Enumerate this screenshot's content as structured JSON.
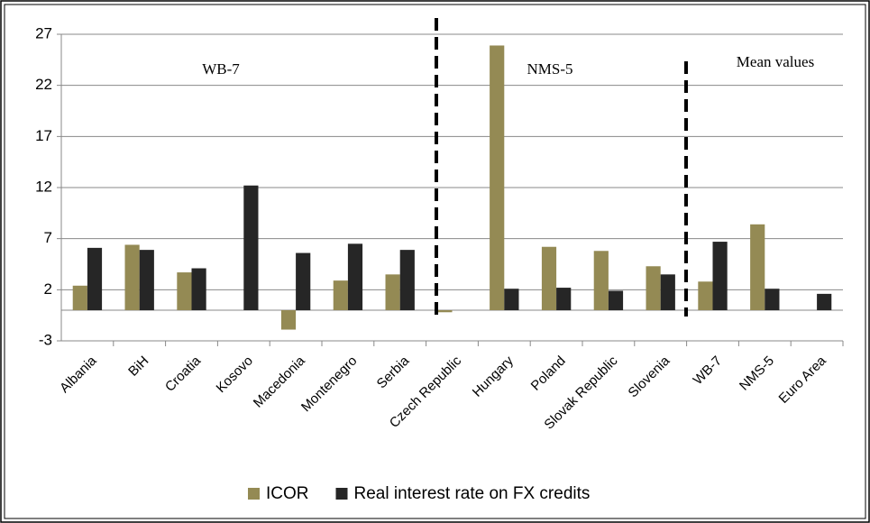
{
  "chart_data": {
    "type": "bar",
    "categories": [
      "Albania",
      "BiH",
      "Croatia",
      "Kosovo",
      "Macedonia",
      "Montenegro",
      "Serbia",
      "Czech Republic",
      "Hungary",
      "Poland",
      "Slovak Republic",
      "Slovenia",
      "WB-7",
      "NMS-5",
      "Euro Area"
    ],
    "series": [
      {
        "name": "ICOR",
        "color": "#948a54",
        "values": [
          2.4,
          6.4,
          3.7,
          null,
          -1.9,
          2.9,
          3.5,
          -0.2,
          25.9,
          6.2,
          5.8,
          4.3,
          2.8,
          8.4,
          null
        ]
      },
      {
        "name": "Real interest rate on FX credits",
        "color": "#262626",
        "values": [
          6.1,
          5.9,
          4.1,
          12.2,
          5.6,
          6.5,
          5.9,
          null,
          2.1,
          2.2,
          1.9,
          3.5,
          6.7,
          2.1,
          1.6
        ]
      }
    ],
    "annotations": [
      "WB-7",
      "NMS-5",
      "Mean values"
    ],
    "ylim": [
      -3,
      27
    ],
    "yticks": [
      -3,
      2,
      7,
      12,
      17,
      22,
      27
    ],
    "grid": true
  }
}
